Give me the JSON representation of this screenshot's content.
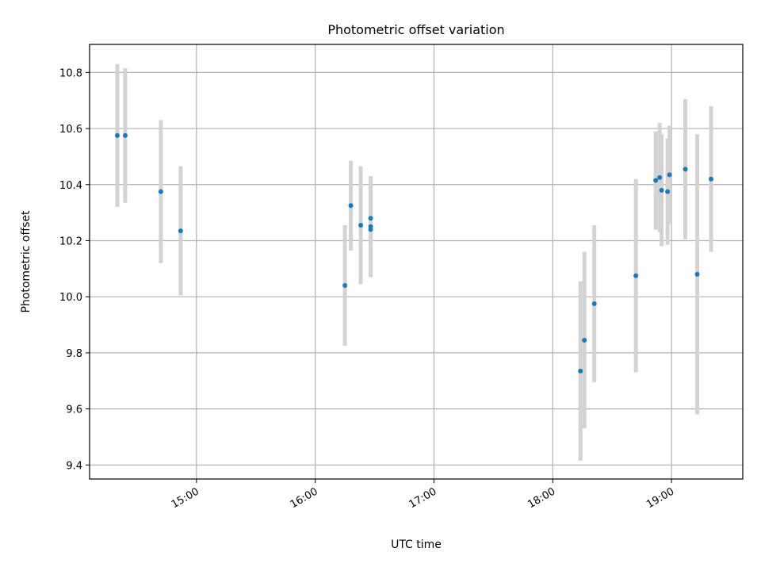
{
  "chart_data": {
    "type": "scatter",
    "title": "Photometric offset variation",
    "xlabel": "UTC time",
    "ylabel": "Photometric offset",
    "x_ticks": [
      "15:00",
      "16:00",
      "17:00",
      "18:00",
      "19:00"
    ],
    "y_ticks": [
      "9.4",
      "9.6",
      "9.8",
      "10.0",
      "10.2",
      "10.4",
      "10.6",
      "10.8"
    ],
    "xlim": [
      "14:06",
      "19:36"
    ],
    "ylim": [
      9.35,
      10.9
    ],
    "grid": true,
    "colors": {
      "points": "#1f77b4",
      "errorbars": "#d3d3d3",
      "grid": "#b0b0b0"
    },
    "series": [
      {
        "points": [
          {
            "x": "14:20",
            "y": 10.575,
            "err": 0.255
          },
          {
            "x": "14:24",
            "y": 10.575,
            "err": 0.24
          },
          {
            "x": "14:42",
            "y": 10.375,
            "err": 0.255
          },
          {
            "x": "14:52",
            "y": 10.235,
            "err": 0.23
          },
          {
            "x": "16:15",
            "y": 10.04,
            "err": 0.215
          },
          {
            "x": "16:18",
            "y": 10.325,
            "err": 0.16
          },
          {
            "x": "16:23",
            "y": 10.255,
            "err": 0.21
          },
          {
            "x": "16:28",
            "y": 10.25,
            "err": 0.18
          },
          {
            "x": "16:28",
            "y": 10.24,
            "err": 0.16
          },
          {
            "x": "16:28",
            "y": 10.28,
            "err": 0.15
          },
          {
            "x": "18:14",
            "y": 9.735,
            "err": 0.32
          },
          {
            "x": "18:16",
            "y": 9.845,
            "err": 0.315
          },
          {
            "x": "18:21",
            "y": 9.975,
            "err": 0.28
          },
          {
            "x": "18:42",
            "y": 10.075,
            "err": 0.345
          },
          {
            "x": "18:52",
            "y": 10.415,
            "err": 0.175
          },
          {
            "x": "18:54",
            "y": 10.425,
            "err": 0.195
          },
          {
            "x": "18:55",
            "y": 10.38,
            "err": 0.2
          },
          {
            "x": "18:58",
            "y": 10.375,
            "err": 0.19
          },
          {
            "x": "18:59",
            "y": 10.435,
            "err": 0.175
          },
          {
            "x": "19:07",
            "y": 10.455,
            "err": 0.25
          },
          {
            "x": "19:13",
            "y": 10.08,
            "err": 0.5
          },
          {
            "x": "19:20",
            "y": 10.42,
            "err": 0.26
          }
        ]
      }
    ]
  }
}
